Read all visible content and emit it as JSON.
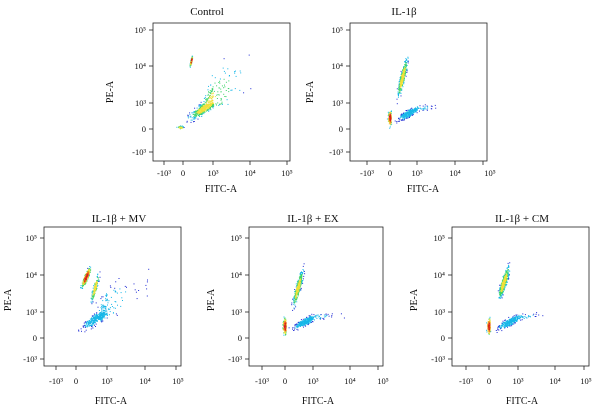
{
  "chart_data": [
    {
      "type": "scatter",
      "title": "Control",
      "xlabel": "FITC-A",
      "ylabel": "PE-A",
      "x_ticks": [
        "-10³",
        "0",
        "10³",
        "10⁴",
        "10⁵"
      ],
      "y_ticks": [
        "10⁵",
        "10⁴",
        "10³",
        "0",
        "-10³"
      ],
      "scale": "biexponential",
      "plot_style": "density pseudocolor",
      "colormap": [
        "#1f2bd4",
        "#17b7e8",
        "#3fd46a",
        "#f0e03a",
        "#f08a1e",
        "#d8201c"
      ],
      "populations": [
        {
          "x": [
            0.6,
            1.0
          ],
          "y": [
            3.9,
            4.4
          ],
          "count": 700,
          "density": "high"
        },
        {
          "x": [
            -0.2,
            4.6
          ],
          "y": [
            0.2,
            4.9
          ],
          "count": 2400,
          "density": "medium"
        },
        {
          "x": [
            -0.3,
            0.0
          ],
          "y": [
            -0.1,
            0.5
          ],
          "count": 150,
          "density": "medium"
        }
      ]
    },
    {
      "type": "scatter",
      "title": "IL-1β",
      "xlabel": "FITC-A",
      "ylabel": "PE-A",
      "x_ticks": [
        "-10³",
        "0",
        "10³",
        "10⁴",
        "10⁵"
      ],
      "y_ticks": [
        "10⁵",
        "10⁴",
        "10³",
        "0",
        "-10³"
      ],
      "scale": "biexponential",
      "plot_style": "density pseudocolor",
      "populations": [
        {
          "x": [
            -0.1,
            0.1
          ],
          "y": [
            0.0,
            2.6
          ],
          "count": 600,
          "density": "high"
        },
        {
          "x": [
            0.5,
            2.2
          ],
          "y": [
            2.8,
            4.6
          ],
          "count": 1600,
          "density": "medium"
        },
        {
          "x": [
            0.0,
            4.3
          ],
          "y": [
            0.3,
            3.5
          ],
          "count": 1300,
          "density": "low"
        }
      ]
    },
    {
      "type": "scatter",
      "title": "IL-1β + MV",
      "xlabel": "FITC-A",
      "ylabel": "PE-A",
      "x_ticks": [
        "-10³",
        "0",
        "10³",
        "10⁴",
        "10⁵"
      ],
      "y_ticks": [
        "10⁵",
        "10⁴",
        "10³",
        "0",
        "-10³"
      ],
      "scale": "biexponential",
      "plot_style": "density pseudocolor",
      "populations": [
        {
          "x": [
            0.3,
            1.6
          ],
          "y": [
            3.5,
            4.4
          ],
          "count": 1400,
          "density": "high"
        },
        {
          "x": [
            1.2,
            2.4
          ],
          "y": [
            3.0,
            4.3
          ],
          "count": 700,
          "density": "medium"
        },
        {
          "x": [
            -0.3,
            4.6
          ],
          "y": [
            0.0,
            4.9
          ],
          "count": 1800,
          "density": "low"
        }
      ]
    },
    {
      "type": "scatter",
      "title": "IL-1β + EX",
      "xlabel": "FITC-A",
      "ylabel": "PE-A",
      "x_ticks": [
        "-10³",
        "0",
        "10³",
        "10⁴",
        "10⁵"
      ],
      "y_ticks": [
        "10⁵",
        "10⁴",
        "10³",
        "0",
        "-10³"
      ],
      "scale": "biexponential",
      "plot_style": "density pseudocolor",
      "populations": [
        {
          "x": [
            -0.1,
            0.1
          ],
          "y": [
            0.0,
            2.8
          ],
          "count": 650,
          "density": "high"
        },
        {
          "x": [
            0.5,
            2.2
          ],
          "y": [
            2.8,
            4.5
          ],
          "count": 1500,
          "density": "medium"
        },
        {
          "x": [
            0.0,
            4.4
          ],
          "y": [
            0.3,
            3.6
          ],
          "count": 1400,
          "density": "low"
        }
      ]
    },
    {
      "type": "scatter",
      "title": "IL-1β + CM",
      "xlabel": "FITC-A",
      "ylabel": "PE-A",
      "x_ticks": [
        "-10³",
        "0",
        "10³",
        "10⁴",
        "10⁵"
      ],
      "y_ticks": [
        "10⁵",
        "10⁴",
        "10³",
        "0",
        "-10³"
      ],
      "scale": "biexponential",
      "plot_style": "density pseudocolor",
      "populations": [
        {
          "x": [
            -0.1,
            0.1
          ],
          "y": [
            0.0,
            2.8
          ],
          "count": 600,
          "density": "high"
        },
        {
          "x": [
            0.6,
            2.4
          ],
          "y": [
            3.0,
            4.6
          ],
          "count": 1700,
          "density": "medium"
        },
        {
          "x": [
            0.0,
            4.4
          ],
          "y": [
            0.3,
            3.6
          ],
          "count": 1300,
          "density": "low"
        }
      ]
    }
  ]
}
